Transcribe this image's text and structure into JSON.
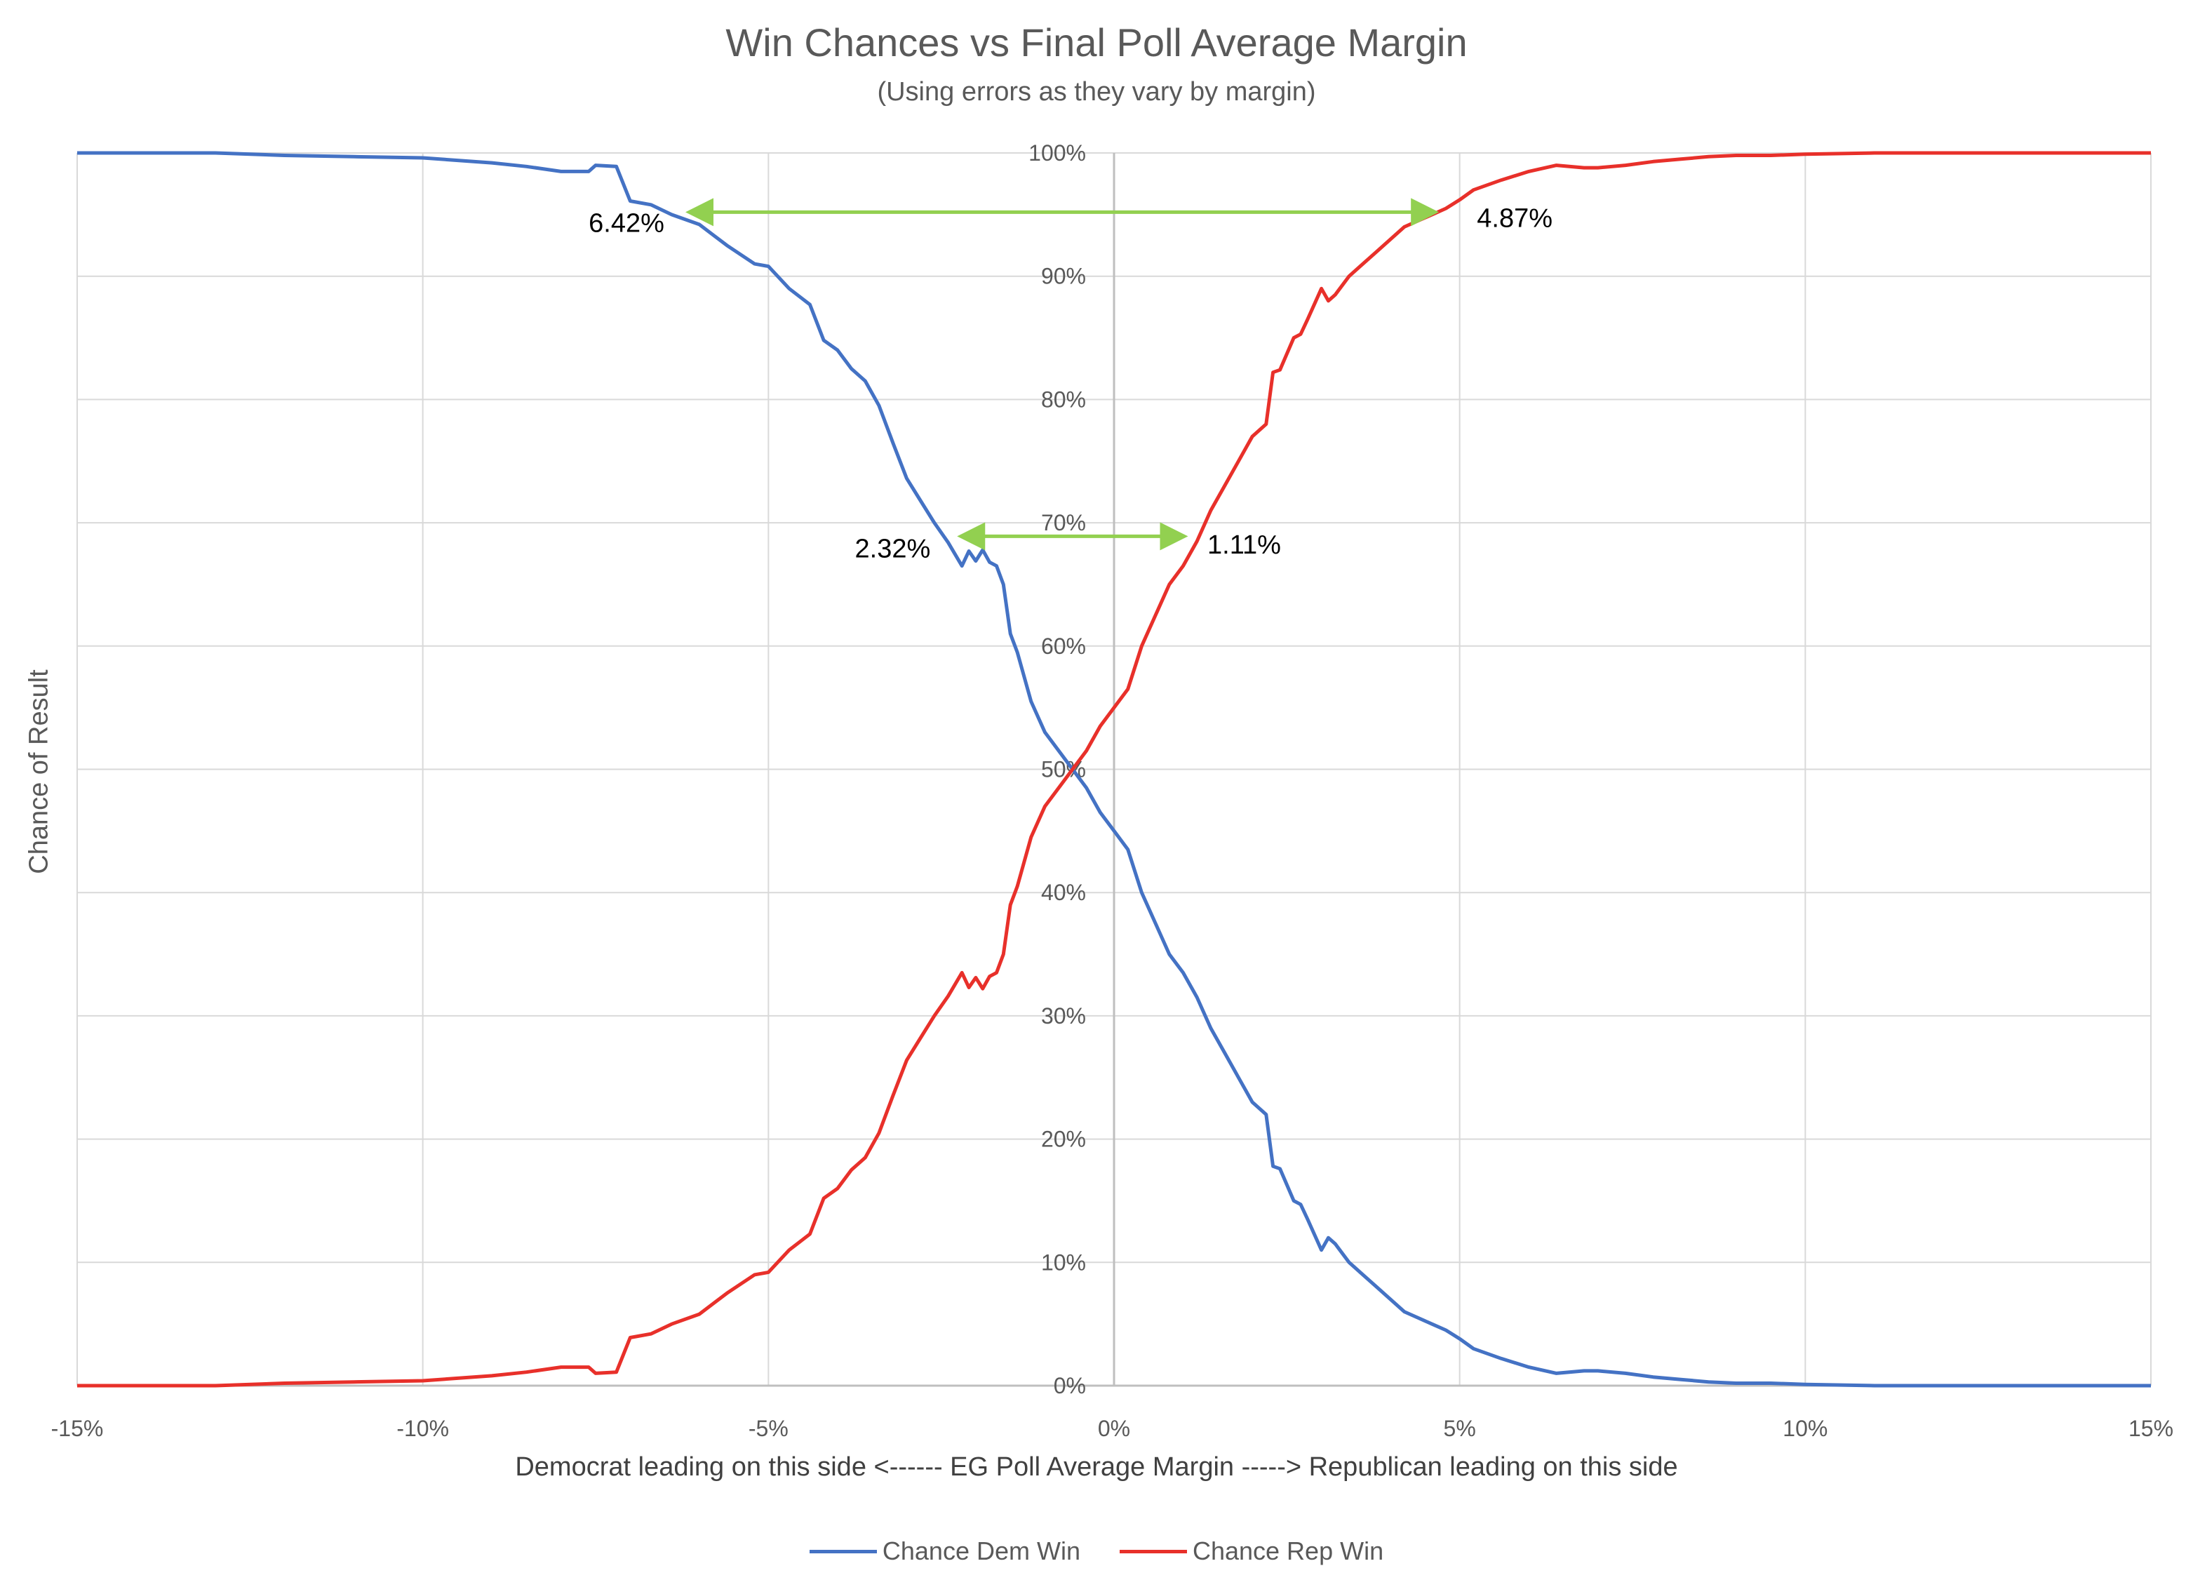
{
  "colors": {
    "dem": "#4472c4",
    "rep": "#e8302a",
    "arrow": "#92d050",
    "grid": "#d9d9d9",
    "axis_zero": "#bfbfbf"
  },
  "chart_data": {
    "type": "line",
    "title": "Win Chances vs Final Poll Average Margin",
    "subtitle": "(Using errors as they vary by margin)",
    "xlabel": "Democrat leading on this side <------ EG Poll Average Margin -----> Republican leading on this side",
    "ylabel": "Chance of Result",
    "xlim": [
      -15,
      15
    ],
    "ylim": [
      0,
      100
    ],
    "grid": true,
    "legend_position": "bottom",
    "x_ticks": [
      -15,
      -10,
      -5,
      0,
      5,
      10,
      15
    ],
    "x_tick_labels": [
      "-15%",
      "-10%",
      "-5%",
      "0%",
      "5%",
      "10%",
      "15%"
    ],
    "y_ticks": [
      0,
      10,
      20,
      30,
      40,
      50,
      60,
      70,
      80,
      90,
      100
    ],
    "y_tick_labels": [
      "0%",
      "10%",
      "20%",
      "30%",
      "40%",
      "50%",
      "60%",
      "70%",
      "80%",
      "90%",
      "100%"
    ],
    "series": [
      {
        "name": "Chance Dem Win",
        "color": "#4472c4",
        "x": [
          -15,
          -13,
          -12,
          -11,
          -10,
          -9,
          -8.5,
          -8,
          -7.6,
          -7.5,
          -7.2,
          -7.0,
          -6.7,
          -6.4,
          -6.0,
          -5.6,
          -5.2,
          -5.0,
          -4.7,
          -4.4,
          -4.2,
          -4.0,
          -3.8,
          -3.6,
          -3.4,
          -3.2,
          -3.0,
          -2.8,
          -2.6,
          -2.4,
          -2.2,
          -2.1,
          -2.0,
          -1.9,
          -1.8,
          -1.7,
          -1.6,
          -1.5,
          -1.4,
          -1.2,
          -1.0,
          -0.8,
          -0.6,
          -0.4,
          -0.2,
          0.0,
          0.2,
          0.4,
          0.6,
          0.8,
          1.0,
          1.2,
          1.4,
          1.6,
          1.8,
          2.0,
          2.2,
          2.3,
          2.4,
          2.6,
          2.7,
          2.8,
          3.0,
          3.1,
          3.2,
          3.4,
          3.6,
          3.8,
          4.0,
          4.2,
          4.4,
          4.6,
          4.8,
          5.0,
          5.2,
          5.6,
          6.0,
          6.4,
          6.8,
          7.0,
          7.4,
          7.8,
          8.2,
          8.6,
          9.0,
          9.5,
          10.0,
          11.0,
          12.0,
          13.0,
          15.0
        ],
        "values": [
          100,
          100,
          99.8,
          99.7,
          99.6,
          99.2,
          98.9,
          98.5,
          98.5,
          99.0,
          98.9,
          96.1,
          95.8,
          95.0,
          94.2,
          92.5,
          91.0,
          90.8,
          89.0,
          87.7,
          84.8,
          84.0,
          82.5,
          81.5,
          79.5,
          76.5,
          73.6,
          71.8,
          70.0,
          68.4,
          66.5,
          67.7,
          66.9,
          67.8,
          66.8,
          66.5,
          65.0,
          61.0,
          59.5,
          55.5,
          53.0,
          51.5,
          50.0,
          48.5,
          46.5,
          45.0,
          43.5,
          40.0,
          37.5,
          35.0,
          33.5,
          31.5,
          29.0,
          27.0,
          25.0,
          23.0,
          22.0,
          17.8,
          17.6,
          15.0,
          14.7,
          13.5,
          11.0,
          12.0,
          11.5,
          10.0,
          9.0,
          8.0,
          7.0,
          6.0,
          5.5,
          5.0,
          4.5,
          3.8,
          3.0,
          2.2,
          1.5,
          1.0,
          1.2,
          1.2,
          1.0,
          0.7,
          0.5,
          0.3,
          0.2,
          0.2,
          0.1,
          0,
          0,
          0,
          0
        ]
      },
      {
        "name": "Chance Rep Win",
        "color": "#e8302a",
        "x": [
          -15,
          -13,
          -12,
          -11,
          -10,
          -9,
          -8.5,
          -8,
          -7.6,
          -7.5,
          -7.2,
          -7.0,
          -6.7,
          -6.4,
          -6.0,
          -5.6,
          -5.2,
          -5.0,
          -4.7,
          -4.4,
          -4.2,
          -4.0,
          -3.8,
          -3.6,
          -3.4,
          -3.2,
          -3.0,
          -2.8,
          -2.6,
          -2.4,
          -2.2,
          -2.1,
          -2.0,
          -1.9,
          -1.8,
          -1.7,
          -1.6,
          -1.5,
          -1.4,
          -1.2,
          -1.0,
          -0.8,
          -0.6,
          -0.4,
          -0.2,
          0.0,
          0.2,
          0.4,
          0.6,
          0.8,
          1.0,
          1.2,
          1.4,
          1.6,
          1.8,
          2.0,
          2.2,
          2.3,
          2.4,
          2.6,
          2.7,
          2.8,
          3.0,
          3.1,
          3.2,
          3.4,
          3.6,
          3.8,
          4.0,
          4.2,
          4.4,
          4.6,
          4.8,
          5.0,
          5.2,
          5.6,
          6.0,
          6.4,
          6.8,
          7.0,
          7.4,
          7.8,
          8.2,
          8.6,
          9.0,
          9.5,
          10.0,
          11.0,
          12.0,
          13.0,
          15.0
        ],
        "values": [
          0,
          0,
          0.2,
          0.3,
          0.4,
          0.8,
          1.1,
          1.5,
          1.5,
          1.0,
          1.1,
          3.9,
          4.2,
          5.0,
          5.8,
          7.5,
          9.0,
          9.2,
          11.0,
          12.3,
          15.2,
          16.0,
          17.5,
          18.5,
          20.5,
          23.5,
          26.4,
          28.2,
          30.0,
          31.6,
          33.5,
          32.3,
          33.1,
          32.2,
          33.2,
          33.5,
          35.0,
          39.0,
          40.5,
          44.5,
          47.0,
          48.5,
          50.0,
          51.5,
          53.5,
          55.0,
          56.5,
          60.0,
          62.5,
          65.0,
          66.5,
          68.5,
          71.0,
          73.0,
          75.0,
          77.0,
          78.0,
          82.2,
          82.4,
          85.0,
          85.3,
          86.5,
          89.0,
          88.0,
          88.5,
          90.0,
          91.0,
          92.0,
          93.0,
          94.0,
          94.5,
          95.0,
          95.5,
          96.2,
          97.0,
          97.8,
          98.5,
          99.0,
          98.8,
          98.8,
          99.0,
          99.3,
          99.5,
          99.7,
          99.8,
          99.8,
          99.9,
          100,
          100,
          100,
          100
        ]
      }
    ],
    "annotations": [
      {
        "label": "6.42%",
        "x_from": -6.15,
        "x_to": 4.65,
        "y": 95.2,
        "label_x": -7.6,
        "label_y": 93.6
      },
      {
        "label": "4.87%",
        "x_from": -6.15,
        "x_to": 4.65,
        "y": 95.2,
        "label_x": 5.25,
        "label_y": 94.0
      },
      {
        "label": "2.32%",
        "x_from": -2.22,
        "x_to": 1.02,
        "y": 68.9,
        "label_x": -3.75,
        "label_y": 67.2
      },
      {
        "label": "1.11%",
        "x_from": -2.22,
        "x_to": 1.02,
        "y": 68.9,
        "label_x": 1.35,
        "label_y": 67.5
      }
    ]
  }
}
